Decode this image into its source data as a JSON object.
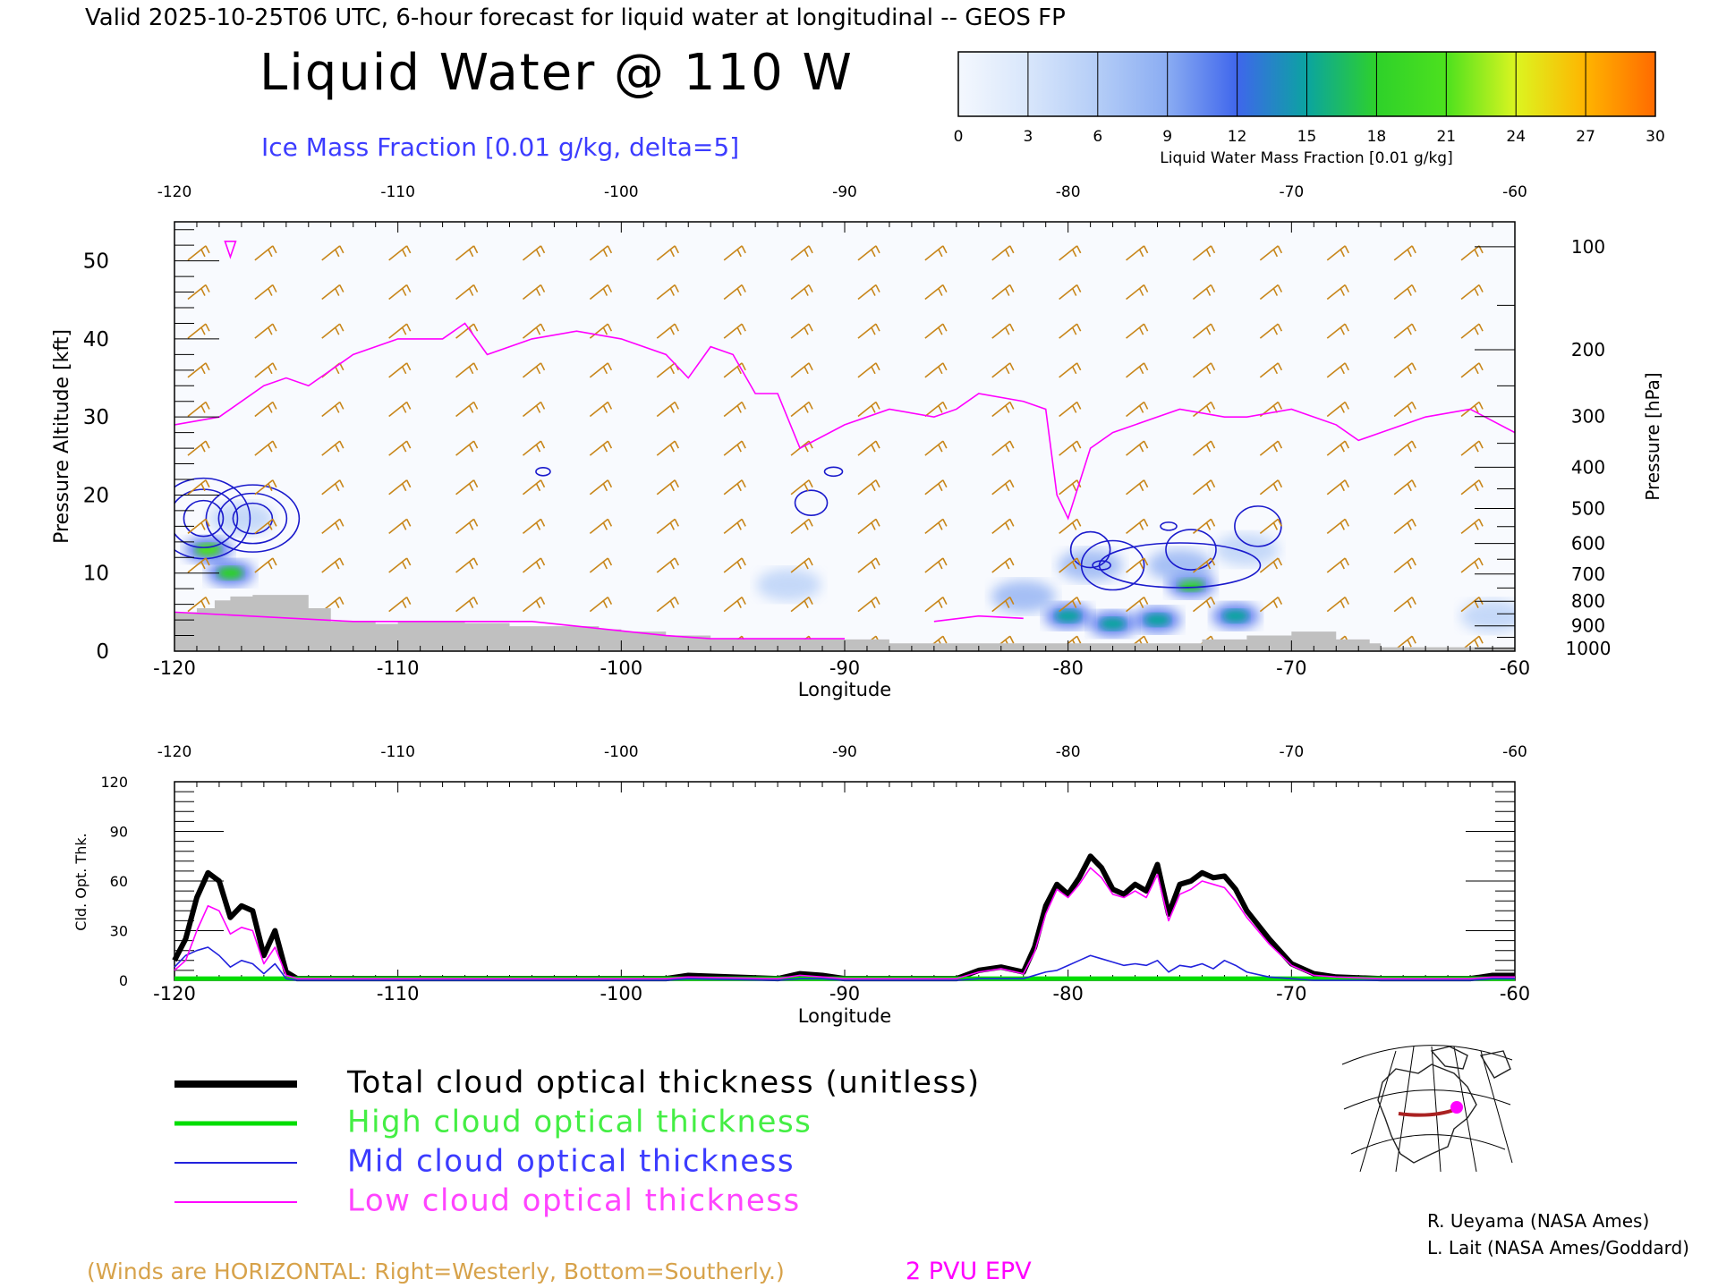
{
  "header": {
    "valid_line": "Valid 2025-10-25T06 UTC, 6-hour forecast for liquid water at longitudinal -- GEOS FP",
    "title": "Liquid Water @ 110 W",
    "subtitle": "Ice Mass Fraction [0.01 g/kg, delta=5]"
  },
  "colorbar": {
    "ticks": [
      "0",
      "3",
      "6",
      "9",
      "12",
      "15",
      "18",
      "21",
      "24",
      "27",
      "30"
    ],
    "label": "Liquid Water Mass Fraction [0.01 g/kg]",
    "colors": [
      "#f4f8fe",
      "#d8e6fb",
      "#b4cdf7",
      "#8aacf2",
      "#3f66ec",
      "#0ba4a0",
      "#2ed12a",
      "#4de11e",
      "#dcf520",
      "#ffb400",
      "#ff6a00"
    ]
  },
  "colors": {
    "wind_barb": "#c8861a",
    "epv": "#ff00ff",
    "ice_contour": "#1a1acc",
    "terrain": "#c0c0c0",
    "total": "#000000",
    "high": "#00dd00",
    "mid": "#2222dd",
    "low": "#ff00ff"
  },
  "chart_data": [
    {
      "type": "heatmap",
      "xlabel": "Longitude",
      "ylabel_left": "Pressure Altitude [kft]",
      "ylabel_right": "Pressure [hPa]",
      "x_ticks": [
        "-120",
        "-110",
        "-100",
        "-90",
        "-80",
        "-70",
        "-60"
      ],
      "x_top_ticks": [
        "-120",
        "-110",
        "-100",
        "-90",
        "-80",
        "-70",
        "-60"
      ],
      "y_ticks": [
        "0",
        "10",
        "20",
        "30",
        "40",
        "50"
      ],
      "pressure_ticks": [
        "100",
        "200",
        "300",
        "400",
        "500",
        "600",
        "700",
        "800",
        "900",
        "1000"
      ],
      "xlim": [
        -120,
        -60
      ],
      "ylim": [
        0,
        55
      ],
      "epv_2pvu": {
        "x": [
          -120,
          -118,
          -116,
          -115,
          -114,
          -112,
          -110,
          -108,
          -107,
          -106,
          -104,
          -102,
          -100,
          -98,
          -97,
          -96,
          -95,
          -94,
          -93,
          -92,
          -90,
          -88,
          -86,
          -85,
          -84,
          -82,
          -81,
          -80.5,
          -80,
          -79,
          -78,
          -76,
          -75,
          -73,
          -72,
          -70,
          -68,
          -67,
          -66,
          -64,
          -62,
          -60
        ],
        "y": [
          29,
          30,
          34,
          35,
          34,
          38,
          40,
          40,
          42,
          38,
          40,
          41,
          40,
          38,
          35,
          39,
          38,
          33,
          33,
          26,
          29,
          31,
          30,
          31,
          33,
          32,
          31,
          20,
          17,
          26,
          28,
          30,
          31,
          30,
          30,
          31,
          29,
          27,
          28,
          30,
          31,
          28
        ]
      },
      "epv_label": "2 PVU EPV",
      "wind_note": "(Winds are HORIZONTAL: Right=Westerly, Bottom=Southerly.)",
      "liquid_water_blobs": [
        {
          "lon": -118.5,
          "kft": 13,
          "value": 21
        },
        {
          "lon": -117.5,
          "kft": 10,
          "value": 18
        },
        {
          "lon": -80,
          "kft": 4.5,
          "value": 16
        },
        {
          "lon": -78,
          "kft": 3.5,
          "value": 15
        },
        {
          "lon": -74.5,
          "kft": 8.5,
          "value": 17
        },
        {
          "lon": -76,
          "kft": 4,
          "value": 14
        },
        {
          "lon": -72.5,
          "kft": 4.5,
          "value": 15
        },
        {
          "lon": -82,
          "kft": 7,
          "value": 8
        },
        {
          "lon": -79,
          "kft": 11,
          "value": 8
        },
        {
          "lon": -75,
          "kft": 11,
          "value": 8
        },
        {
          "lon": -72,
          "kft": 13,
          "value": 7
        },
        {
          "lon": -117,
          "kft": 17,
          "value": 6
        },
        {
          "lon": -61,
          "kft": 4.5,
          "value": 5
        },
        {
          "lon": -92.5,
          "kft": 8.5,
          "value": 4
        }
      ],
      "terrain_kft": {
        "x": [
          -120,
          -119,
          -118.2,
          -117.5,
          -116.5,
          -115,
          -114,
          -113,
          -111,
          -110,
          -109,
          -107,
          -105,
          -103,
          -101,
          -100,
          -98,
          -96,
          -94,
          -92,
          -90,
          -88,
          -86,
          -84,
          -82,
          -80,
          -78,
          -76,
          -74,
          -72,
          -70,
          -68,
          -66.5,
          -66,
          -60
        ],
        "y": [
          5,
          5.5,
          6.5,
          7,
          7.2,
          7.2,
          5.5,
          3.8,
          3.5,
          3.8,
          3.8,
          3.6,
          3.2,
          3.2,
          2.8,
          2.5,
          2.0,
          1.5,
          1.5,
          1.5,
          1.5,
          1,
          1,
          1,
          1,
          1,
          1,
          1,
          1.5,
          2,
          2.5,
          1.5,
          1,
          0.5,
          0.5
        ]
      }
    },
    {
      "type": "line",
      "xlabel": "Longitude",
      "ylabel": "Cld. Opt. Thk.",
      "x_ticks": [
        "-120",
        "-110",
        "-100",
        "-90",
        "-80",
        "-70",
        "-60"
      ],
      "x_top_ticks": [
        "-120",
        "-110",
        "-100",
        "-90",
        "-80",
        "-70",
        "-60"
      ],
      "y_ticks": [
        "0",
        "30",
        "60",
        "90",
        "120"
      ],
      "xlim": [
        -120,
        -60
      ],
      "ylim": [
        0,
        120
      ],
      "x": [
        -120,
        -119.5,
        -119,
        -118.5,
        -118,
        -117.5,
        -117,
        -116.5,
        -116,
        -115.5,
        -115,
        -114.5,
        -114,
        -110,
        -100,
        -98,
        -97,
        -93,
        -92,
        -91,
        -90,
        -85,
        -84,
        -83,
        -82,
        -81.5,
        -81,
        -80.5,
        -80,
        -79.5,
        -79,
        -78.5,
        -78,
        -77.5,
        -77,
        -76.5,
        -76,
        -75.5,
        -75,
        -74.5,
        -74,
        -73.5,
        -73,
        -72.5,
        -72,
        -71,
        -70,
        -69,
        -68,
        -66,
        -62,
        -61,
        -60
      ],
      "series": [
        {
          "name": "Total cloud optical thickness (unitless)",
          "values": [
            12,
            25,
            50,
            65,
            60,
            38,
            45,
            42,
            15,
            30,
            5,
            1,
            1,
            1,
            1,
            1,
            3,
            1,
            4,
            3,
            1,
            1,
            6,
            8,
            5,
            20,
            45,
            58,
            52,
            62,
            75,
            68,
            55,
            52,
            58,
            54,
            70,
            40,
            58,
            60,
            65,
            62,
            63,
            55,
            42,
            25,
            10,
            4,
            2,
            1,
            1,
            3,
            3
          ]
        },
        {
          "name": "High cloud optical thickness",
          "values": [
            1,
            1,
            1,
            1,
            1,
            1,
            1,
            1,
            1,
            1,
            1,
            1,
            1,
            1,
            1,
            1,
            1,
            1,
            1,
            1,
            1,
            1,
            1,
            1,
            1,
            1,
            1,
            1,
            1,
            1,
            1,
            1,
            1,
            1,
            1,
            1,
            1,
            1,
            1,
            1,
            1,
            1,
            1,
            1,
            1,
            1,
            1,
            1,
            1,
            1,
            1,
            1,
            1
          ]
        },
        {
          "name": "Mid cloud optical thickness",
          "values": [
            8,
            15,
            18,
            20,
            15,
            8,
            12,
            10,
            4,
            10,
            1,
            0,
            0,
            0,
            0,
            0,
            1,
            0,
            1,
            1,
            0,
            0,
            1,
            1,
            1,
            3,
            5,
            6,
            9,
            12,
            15,
            13,
            11,
            9,
            10,
            9,
            12,
            5,
            9,
            8,
            10,
            7,
            12,
            9,
            5,
            2,
            1,
            0,
            0,
            0,
            0,
            1,
            1
          ]
        },
        {
          "name": "Low cloud optical thickness",
          "values": [
            6,
            12,
            30,
            45,
            42,
            28,
            32,
            30,
            10,
            20,
            3,
            1,
            1,
            1,
            1,
            1,
            2,
            1,
            3,
            2,
            1,
            1,
            5,
            7,
            4,
            17,
            40,
            55,
            50,
            58,
            68,
            62,
            52,
            50,
            54,
            50,
            64,
            36,
            52,
            55,
            60,
            58,
            56,
            48,
            38,
            22,
            9,
            3,
            2,
            1,
            1,
            2,
            2
          ]
        }
      ]
    }
  ],
  "legend": {
    "total": "Total cloud optical thickness (unitless)",
    "high": "High cloud optical thickness",
    "mid": "Mid cloud optical thickness",
    "low": "Low cloud optical thickness"
  },
  "credits": {
    "line1": "R. Ueyama (NASA Ames)",
    "line2": "L. Lait (NASA Ames/Goddard)"
  }
}
